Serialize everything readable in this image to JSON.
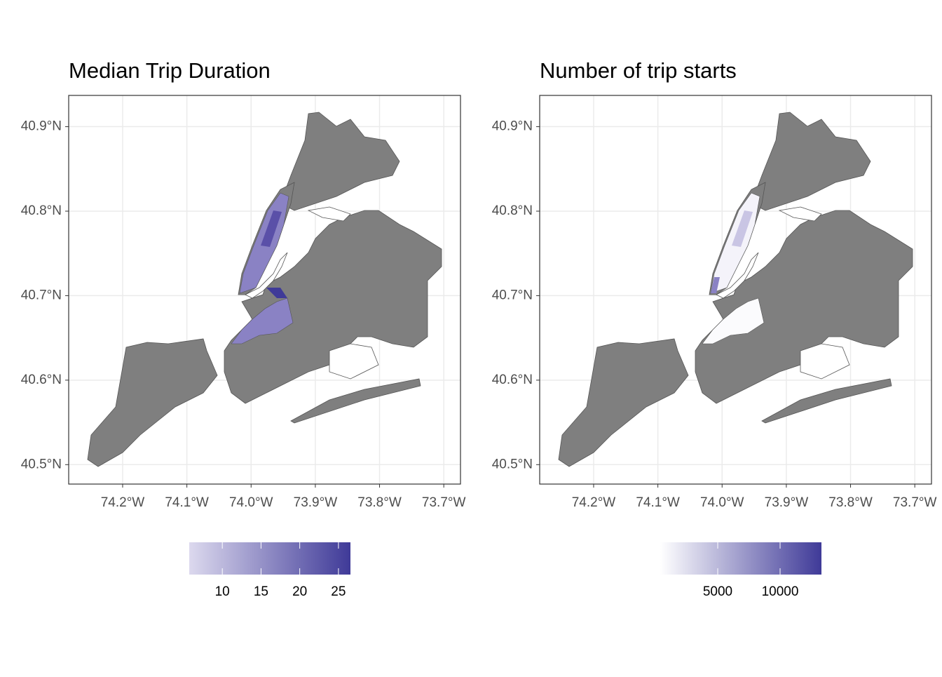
{
  "maps": [
    {
      "title": "Median Trip Duration",
      "xlim": [
        -74.284,
        -73.674
      ],
      "ylim": [
        40.477,
        40.937
      ],
      "xticks": [
        {
          "value": -74.2,
          "label": "74.2°W"
        },
        {
          "value": -74.1,
          "label": "74.1°W"
        },
        {
          "value": -74.0,
          "label": "74.0°W"
        },
        {
          "value": -73.9,
          "label": "73.9°W"
        },
        {
          "value": -73.8,
          "label": "73.8°W"
        },
        {
          "value": -73.7,
          "label": "73.7°W"
        }
      ],
      "yticks": [
        {
          "value": 40.5,
          "label": "40.5°N"
        },
        {
          "value": 40.6,
          "label": "40.6°N"
        },
        {
          "value": 40.7,
          "label": "40.7°N"
        },
        {
          "value": 40.8,
          "label": "40.8°N"
        },
        {
          "value": 40.9,
          "label": "40.9°N"
        }
      ],
      "legend": {
        "lim": [
          5.73,
          26.55
        ],
        "ticks": [
          10,
          15,
          20,
          25
        ],
        "colors": [
          "#dcd9ee",
          "#3f3a98"
        ]
      }
    },
    {
      "title": "Number of trip starts",
      "xlim": [
        -74.284,
        -73.674
      ],
      "ylim": [
        40.477,
        40.937
      ],
      "xticks": [
        {
          "value": -74.2,
          "label": "74.2°W"
        },
        {
          "value": -74.1,
          "label": "74.1°W"
        },
        {
          "value": -74.0,
          "label": "74.0°W"
        },
        {
          "value": -73.9,
          "label": "73.9°W"
        },
        {
          "value": -73.8,
          "label": "73.8°W"
        },
        {
          "value": -73.7,
          "label": "73.7°W"
        }
      ],
      "yticks": [
        {
          "value": 40.5,
          "label": "40.5°N"
        },
        {
          "value": 40.6,
          "label": "40.6°N"
        },
        {
          "value": 40.7,
          "label": "40.7°N"
        },
        {
          "value": 40.8,
          "label": "40.8°N"
        },
        {
          "value": 40.9,
          "label": "40.9°N"
        }
      ],
      "legend": {
        "lim": [
          393,
          13315
        ],
        "ticks": [
          5000,
          10000
        ],
        "colors": [
          "#ffffff",
          "#3f3a98"
        ]
      }
    }
  ]
}
